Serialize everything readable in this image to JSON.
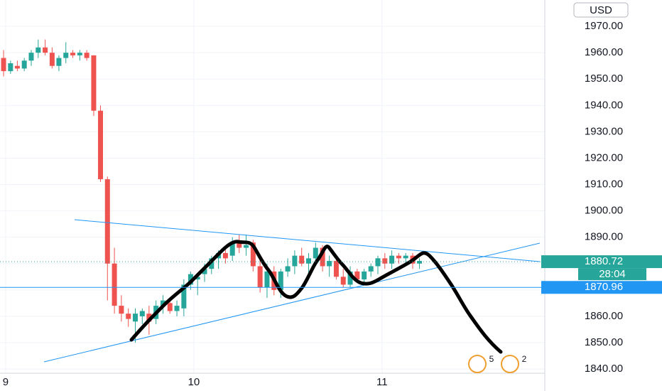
{
  "chart_data": {
    "type": "candlestick",
    "currency": "USD",
    "up_color": "#26a69a",
    "down_color": "#ef5350",
    "grid": true,
    "x": [
      8.989,
      9.026,
      9.062,
      9.099,
      9.136,
      9.173,
      9.21,
      9.247,
      9.283,
      9.32,
      9.357,
      9.394,
      9.431,
      9.468,
      9.504,
      9.541,
      9.578,
      9.615,
      9.652,
      9.689,
      9.726,
      9.762,
      9.799,
      9.836,
      9.873,
      9.91,
      9.947,
      9.983,
      10.02,
      10.057,
      10.094,
      10.131,
      10.168,
      10.205,
      10.241,
      10.278,
      10.315,
      10.352,
      10.389,
      10.426,
      10.462,
      10.499,
      10.536,
      10.573,
      10.61,
      10.647,
      10.684,
      10.72,
      10.757,
      10.794,
      10.831,
      10.868,
      10.905,
      10.941,
      10.978,
      11.015,
      11.052,
      11.089,
      11.126,
      11.163,
      11.199
    ],
    "open": [
      1958,
      1953,
      1955,
      1954,
      1957,
      1960,
      1962,
      1960,
      1955,
      1958,
      1960,
      1959,
      1960,
      1959,
      1938,
      1912,
      1880,
      1864,
      1861,
      1858,
      1860,
      1861,
      1859,
      1864,
      1865,
      1862,
      1863,
      1872,
      1874,
      1876,
      1878,
      1882,
      1884,
      1883,
      1888,
      1886,
      1888,
      1879,
      1871,
      1877,
      1870,
      1877,
      1879,
      1883,
      1880,
      1882,
      1886,
      1879,
      1881,
      1875,
      1872,
      1877,
      1874,
      1877,
      1879,
      1882,
      1880,
      1883,
      1882,
      1883,
      1880
    ],
    "high": [
      1961,
      1957,
      1957,
      1958,
      1961,
      1965,
      1965,
      1962,
      1959,
      1964,
      1961,
      1961,
      1961,
      1959,
      1940,
      1913,
      1886,
      1868,
      1863,
      1863,
      1863,
      1864,
      1866,
      1868,
      1866,
      1866,
      1874,
      1877,
      1876,
      1880,
      1883,
      1885,
      1886,
      1890,
      1891,
      1891,
      1889,
      1882,
      1880,
      1879,
      1878,
      1882,
      1885,
      1886,
      1884,
      1888,
      1887,
      1883,
      1882,
      1878,
      1879,
      1878,
      1878,
      1880,
      1883,
      1884,
      1885,
      1884,
      1884,
      1884,
      1882
    ],
    "low": [
      1951,
      1952,
      1953,
      1953,
      1955,
      1958,
      1959,
      1954,
      1953,
      1956,
      1958,
      1957,
      1957,
      1936,
      1911,
      1866,
      1861,
      1858,
      1856,
      1850,
      1857,
      1853,
      1857,
      1861,
      1861,
      1860,
      1860,
      1870,
      1868,
      1873,
      1876,
      1878,
      1880,
      1881,
      1884,
      1883,
      1877,
      1869,
      1867,
      1868,
      1867,
      1875,
      1876,
      1879,
      1876,
      1880,
      1877,
      1875,
      1874,
      1871,
      1871,
      1873,
      1872,
      1875,
      1876,
      1878,
      1878,
      1880,
      1879,
      1878,
      1878
    ],
    "close": [
      1953,
      1956,
      1954,
      1957,
      1960,
      1962,
      1960,
      1955,
      1958,
      1960,
      1959,
      1960,
      1958,
      1938,
      1912,
      1880,
      1864,
      1861,
      1859,
      1861,
      1862,
      1858,
      1864,
      1866,
      1862,
      1864,
      1872,
      1876,
      1875,
      1878,
      1882,
      1884,
      1882,
      1888,
      1886,
      1887,
      1879,
      1871,
      1877,
      1870,
      1877,
      1879,
      1883,
      1880,
      1882,
      1886,
      1879,
      1881,
      1875,
      1872,
      1877,
      1874,
      1877,
      1879,
      1882,
      1880,
      1883,
      1882,
      1883,
      1880,
      1881
    ],
    "xlim": [
      8.97,
      11.865
    ],
    "xticks": [
      9,
      10,
      11
    ],
    "ylim": [
      1838.4,
      1980
    ],
    "yticks": [
      {
        "value": 1840,
        "label": "1840.00"
      },
      {
        "value": 1850,
        "label": "1850.00"
      },
      {
        "value": 1860,
        "label": "1860.00"
      },
      {
        "value": 1870,
        "label": "1870.00"
      },
      {
        "value": 1880,
        "label": "1880.00"
      },
      {
        "value": 1890,
        "label": "1890.00"
      },
      {
        "value": 1900,
        "label": "1900.00"
      },
      {
        "value": 1910,
        "label": "1910.00"
      },
      {
        "value": 1920,
        "label": "1920.00"
      },
      {
        "value": 1930,
        "label": "1930.00"
      },
      {
        "value": 1940,
        "label": "1940.00"
      },
      {
        "value": 1950,
        "label": "1950.00"
      },
      {
        "value": 1960,
        "label": "1960.00"
      },
      {
        "value": 1970,
        "label": "1970.00"
      }
    ],
    "last_price": 1880.72,
    "countdown": "28:04",
    "price_line": 1870.96,
    "price_line_color": "#2196f3",
    "event_badges": [
      "5",
      "2"
    ]
  }
}
